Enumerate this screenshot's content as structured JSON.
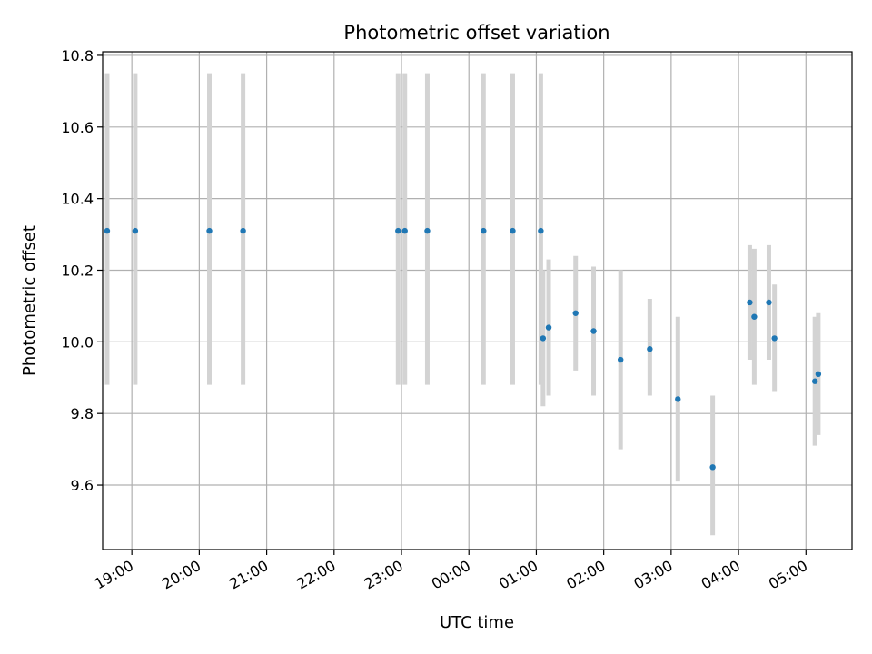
{
  "chart_data": {
    "type": "scatter",
    "title": "Photometric offset variation",
    "xlabel": "UTC time",
    "ylabel": "Photometric offset",
    "grid": true,
    "xlim": [
      "18:34",
      "05:41"
    ],
    "ylim": [
      9.42,
      10.81
    ],
    "x_ticks": [
      "19:00",
      "20:00",
      "21:00",
      "22:00",
      "23:00",
      "00:00",
      "01:00",
      "02:00",
      "03:00",
      "04:00",
      "05:00"
    ],
    "y_ticks": [
      "9.6",
      "9.8",
      "10.0",
      "10.2",
      "10.4",
      "10.6",
      "10.8"
    ],
    "marker_color": "#1f77b4",
    "errorbar_color": "#d3d3d3",
    "points": [
      {
        "t": "18:38",
        "y": 10.31,
        "ylow": 9.88,
        "yhigh": 10.75
      },
      {
        "t": "19:03",
        "y": 10.31,
        "ylow": 9.88,
        "yhigh": 10.75
      },
      {
        "t": "20:09",
        "y": 10.31,
        "ylow": 9.88,
        "yhigh": 10.75
      },
      {
        "t": "20:39",
        "y": 10.31,
        "ylow": 9.88,
        "yhigh": 10.75
      },
      {
        "t": "22:57",
        "y": 10.31,
        "ylow": 9.88,
        "yhigh": 10.75
      },
      {
        "t": "23:03",
        "y": 10.31,
        "ylow": 9.88,
        "yhigh": 10.75
      },
      {
        "t": "23:23",
        "y": 10.31,
        "ylow": 9.88,
        "yhigh": 10.75
      },
      {
        "t": "00:13",
        "y": 10.31,
        "ylow": 9.88,
        "yhigh": 10.75
      },
      {
        "t": "00:39",
        "y": 10.31,
        "ylow": 9.88,
        "yhigh": 10.75
      },
      {
        "t": "01:04",
        "y": 10.31,
        "ylow": 9.88,
        "yhigh": 10.75
      },
      {
        "t": "01:06",
        "y": 10.01,
        "ylow": 9.82,
        "yhigh": 10.2
      },
      {
        "t": "01:11",
        "y": 10.04,
        "ylow": 9.85,
        "yhigh": 10.23
      },
      {
        "t": "01:35",
        "y": 10.08,
        "ylow": 9.92,
        "yhigh": 10.24
      },
      {
        "t": "01:51",
        "y": 10.03,
        "ylow": 9.85,
        "yhigh": 10.21
      },
      {
        "t": "02:15",
        "y": 9.95,
        "ylow": 9.7,
        "yhigh": 10.2
      },
      {
        "t": "02:41",
        "y": 9.98,
        "ylow": 9.85,
        "yhigh": 10.12
      },
      {
        "t": "03:06",
        "y": 9.84,
        "ylow": 9.61,
        "yhigh": 10.07
      },
      {
        "t": "03:37",
        "y": 9.65,
        "ylow": 9.46,
        "yhigh": 9.85
      },
      {
        "t": "04:10",
        "y": 10.11,
        "ylow": 9.95,
        "yhigh": 10.27
      },
      {
        "t": "04:14",
        "y": 10.07,
        "ylow": 9.88,
        "yhigh": 10.26
      },
      {
        "t": "04:27",
        "y": 10.11,
        "ylow": 9.95,
        "yhigh": 10.27
      },
      {
        "t": "04:32",
        "y": 10.01,
        "ylow": 9.86,
        "yhigh": 10.16
      },
      {
        "t": "05:08",
        "y": 9.89,
        "ylow": 9.71,
        "yhigh": 10.07
      },
      {
        "t": "05:11",
        "y": 9.91,
        "ylow": 9.74,
        "yhigh": 10.08
      }
    ]
  }
}
